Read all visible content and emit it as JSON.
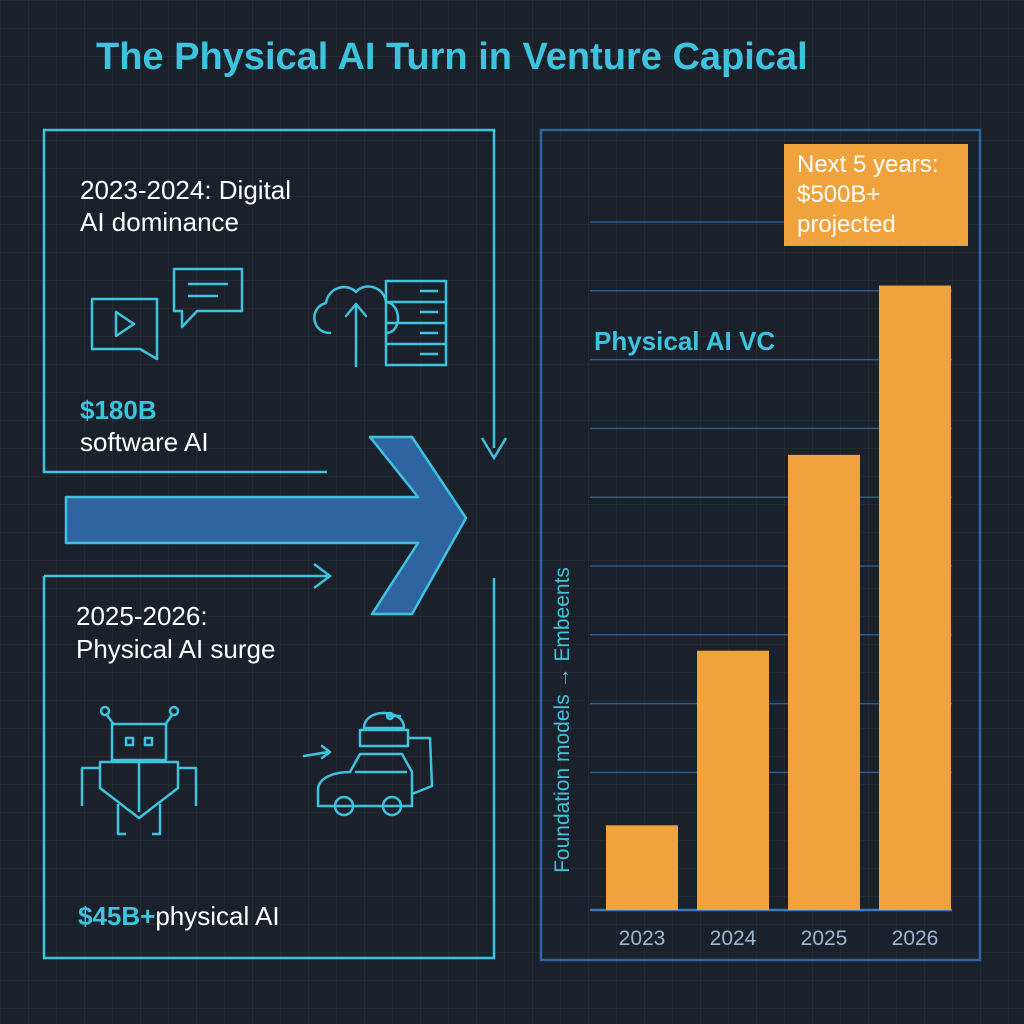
{
  "title": "The Physical AI Turn in Venture Capical",
  "digital": {
    "heading_line1": "2023-2024: Digital",
    "heading_line2": "AI dominance",
    "amount": "$180B",
    "amount_label": "software AI",
    "icons": [
      "video-chat-icon",
      "message-icon",
      "cloud-upload-icon",
      "server-rack-icon"
    ]
  },
  "physical": {
    "heading_line1": "2025-2026:",
    "heading_line2": "Physical AI surge",
    "amount": "$45B+",
    "amount_label": "physical AI",
    "icons": [
      "robot-icon",
      "autonomous-vehicle-icon"
    ]
  },
  "callout": {
    "line1": "Next 5 years:",
    "line2": "$500B+",
    "line3": "projected"
  },
  "colors": {
    "accent": "#3ec3df",
    "bar": "#f0a23c",
    "arrow": "#2f64a3",
    "background": "#1a212b"
  },
  "chart_data": {
    "type": "bar",
    "title": "Physical AI VC",
    "ylabel": "Foundation models → Embeents",
    "categories": [
      "2023",
      "2024",
      "2025",
      "2026"
    ],
    "values": [
      16,
      49,
      86,
      118
    ],
    "ylim": [
      0,
      130
    ],
    "grid": true,
    "gridlines": [
      0,
      26,
      39,
      52,
      65,
      78,
      91,
      104,
      117,
      130
    ]
  }
}
